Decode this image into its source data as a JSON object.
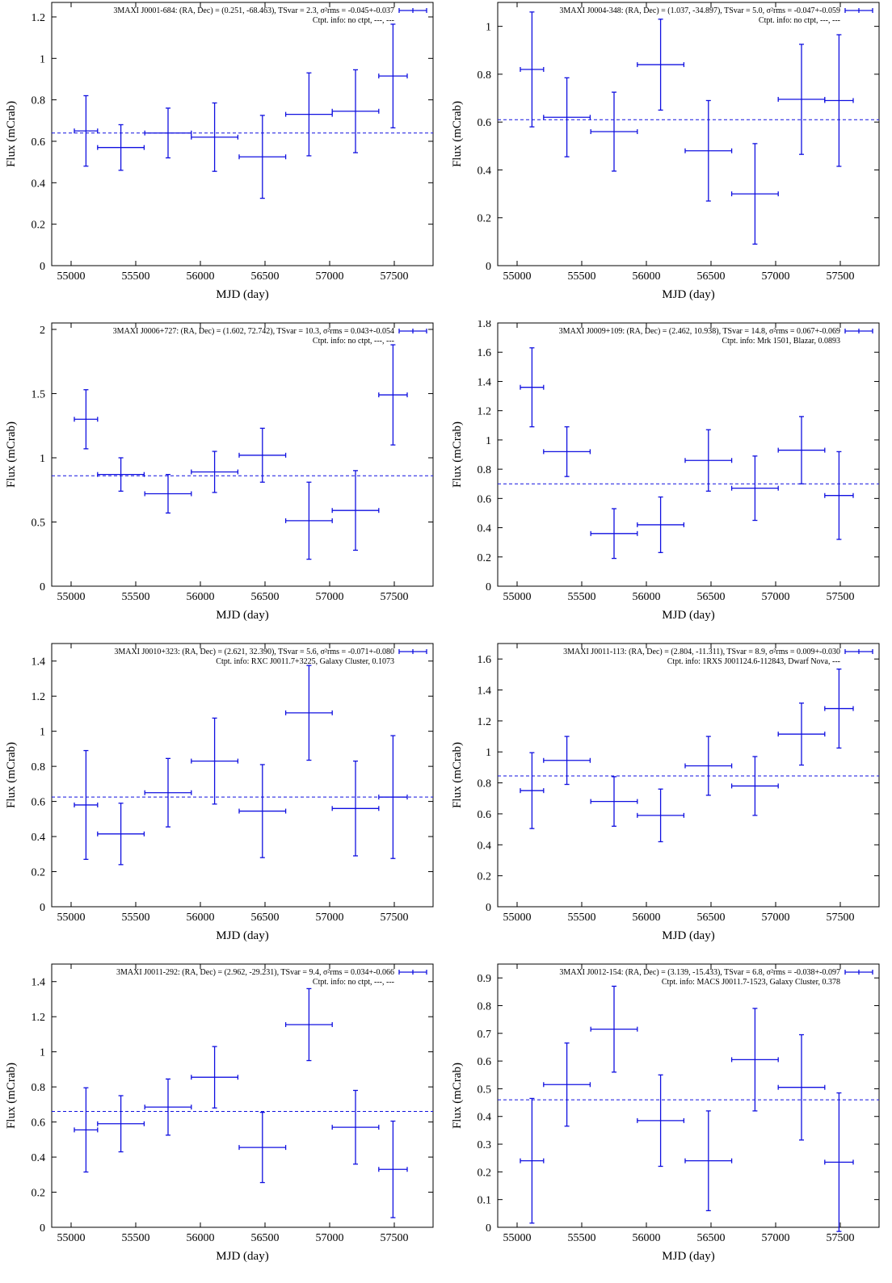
{
  "style": {
    "series_color": "#1010e0",
    "frame_color": "#000000"
  },
  "chart_data": [
    {
      "type": "scatter",
      "legend_title": "3MAXI J0001-684: (RA, Dec) = (0.251, -68.463), TSvar = 2.3, σ²rms = -0.045+-0.037",
      "legend_ctpt": "Ctpt. info: no ctpt, ---, ---",
      "legend_position": "top-right",
      "xlabel": "MJD (day)",
      "ylabel": "Flux (mCrab)",
      "xlim": [
        54850,
        57800
      ],
      "ylim": [
        0,
        1.27
      ],
      "xticks": [
        55000,
        55500,
        56000,
        56500,
        57000,
        57500
      ],
      "yticks": [
        0,
        0.2,
        0.4,
        0.6,
        0.8,
        1,
        1.2
      ],
      "mean": 0.64,
      "points": [
        {
          "x": 55115,
          "y": 0.65,
          "xerr": 90,
          "yerr": 0.17
        },
        {
          "x": 55385,
          "y": 0.57,
          "xerr": 180,
          "yerr": 0.11
        },
        {
          "x": 55750,
          "y": 0.64,
          "xerr": 180,
          "yerr": 0.12
        },
        {
          "x": 56110,
          "y": 0.62,
          "xerr": 180,
          "yerr": 0.165
        },
        {
          "x": 56480,
          "y": 0.525,
          "xerr": 180,
          "yerr": 0.2
        },
        {
          "x": 56840,
          "y": 0.73,
          "xerr": 180,
          "yerr": 0.2
        },
        {
          "x": 57200,
          "y": 0.745,
          "xerr": 180,
          "yerr": 0.2
        },
        {
          "x": 57490,
          "y": 0.915,
          "xerr": 110,
          "yerr": 0.25
        }
      ]
    },
    {
      "type": "scatter",
      "legend_title": "3MAXI J0004-348: (RA, Dec) = (1.037, -34.897), TSvar = 5.0, σ²rms = -0.047+-0.059",
      "legend_ctpt": "Ctpt. info: no ctpt, ---, ---",
      "legend_position": "top-right",
      "xlabel": "MJD (day)",
      "ylabel": "Flux (mCrab)",
      "xlim": [
        54850,
        57800
      ],
      "ylim": [
        0,
        1.1
      ],
      "xticks": [
        55000,
        55500,
        56000,
        56500,
        57000,
        57500
      ],
      "yticks": [
        0,
        0.2,
        0.4,
        0.6,
        0.8,
        1
      ],
      "mean": 0.61,
      "points": [
        {
          "x": 55115,
          "y": 0.82,
          "xerr": 90,
          "yerr": 0.24
        },
        {
          "x": 55385,
          "y": 0.62,
          "xerr": 180,
          "yerr": 0.165
        },
        {
          "x": 55750,
          "y": 0.56,
          "xerr": 180,
          "yerr": 0.165
        },
        {
          "x": 56110,
          "y": 0.84,
          "xerr": 180,
          "yerr": 0.19
        },
        {
          "x": 56480,
          "y": 0.48,
          "xerr": 180,
          "yerr": 0.21
        },
        {
          "x": 56840,
          "y": 0.3,
          "xerr": 180,
          "yerr": 0.21
        },
        {
          "x": 57200,
          "y": 0.695,
          "xerr": 180,
          "yerr": 0.23
        },
        {
          "x": 57490,
          "y": 0.69,
          "xerr": 110,
          "yerr": 0.275
        }
      ]
    },
    {
      "type": "scatter",
      "legend_title": "3MAXI J0006+727: (RA, Dec) = (1.602, 72.742), TSvar = 10.3, σ²rms = 0.043+-0.054",
      "legend_ctpt": "Ctpt. info: no ctpt, ---, ---",
      "legend_position": "top-right",
      "xlabel": "MJD (day)",
      "ylabel": "Flux (mCrab)",
      "xlim": [
        54850,
        57800
      ],
      "ylim": [
        0,
        2.05
      ],
      "xticks": [
        55000,
        55500,
        56000,
        56500,
        57000,
        57500
      ],
      "yticks": [
        0,
        0.5,
        1,
        1.5,
        2
      ],
      "mean": 0.86,
      "points": [
        {
          "x": 55115,
          "y": 1.3,
          "xerr": 90,
          "yerr": 0.23
        },
        {
          "x": 55385,
          "y": 0.87,
          "xerr": 180,
          "yerr": 0.13
        },
        {
          "x": 55750,
          "y": 0.72,
          "xerr": 180,
          "yerr": 0.15
        },
        {
          "x": 56110,
          "y": 0.89,
          "xerr": 180,
          "yerr": 0.16
        },
        {
          "x": 56480,
          "y": 1.02,
          "xerr": 180,
          "yerr": 0.21
        },
        {
          "x": 56840,
          "y": 0.51,
          "xerr": 180,
          "yerr": 0.3
        },
        {
          "x": 57200,
          "y": 0.59,
          "xerr": 180,
          "yerr": 0.31
        },
        {
          "x": 57490,
          "y": 1.49,
          "xerr": 110,
          "yerr": 0.39
        }
      ]
    },
    {
      "type": "scatter",
      "legend_title": "3MAXI J0009+109: (RA, Dec) = (2.462, 10.938), TSvar = 14.8, σ²rms = 0.067+-0.069",
      "legend_ctpt": "Ctpt. info: Mrk 1501, Blazar, 0.0893",
      "legend_position": "top-right",
      "xlabel": "MJD (day)",
      "ylabel": "Flux (mCrab)",
      "xlim": [
        54850,
        57800
      ],
      "ylim": [
        0,
        1.8
      ],
      "xticks": [
        55000,
        55500,
        56000,
        56500,
        57000,
        57500
      ],
      "yticks": [
        0,
        0.2,
        0.4,
        0.6,
        0.8,
        1,
        1.2,
        1.4,
        1.6,
        1.8
      ],
      "mean": 0.7,
      "points": [
        {
          "x": 55115,
          "y": 1.36,
          "xerr": 90,
          "yerr": 0.27
        },
        {
          "x": 55385,
          "y": 0.92,
          "xerr": 180,
          "yerr": 0.17
        },
        {
          "x": 55750,
          "y": 0.36,
          "xerr": 180,
          "yerr": 0.17
        },
        {
          "x": 56110,
          "y": 0.42,
          "xerr": 180,
          "yerr": 0.19
        },
        {
          "x": 56480,
          "y": 0.86,
          "xerr": 180,
          "yerr": 0.21
        },
        {
          "x": 56840,
          "y": 0.67,
          "xerr": 180,
          "yerr": 0.22
        },
        {
          "x": 57200,
          "y": 0.93,
          "xerr": 180,
          "yerr": 0.23
        },
        {
          "x": 57490,
          "y": 0.62,
          "xerr": 110,
          "yerr": 0.3
        }
      ]
    },
    {
      "type": "scatter",
      "legend_title": "3MAXI J0010+323: (RA, Dec) = (2.621, 32.390), TSvar = 5.6, σ²rms = -0.071+-0.080",
      "legend_ctpt": "Ctpt. info: RXC J0011.7+3225, Galaxy Cluster, 0.1073",
      "legend_position": "top-right",
      "xlabel": "MJD (day)",
      "ylabel": "Flux (mCrab)",
      "xlim": [
        54850,
        57800
      ],
      "ylim": [
        0,
        1.5
      ],
      "xticks": [
        55000,
        55500,
        56000,
        56500,
        57000,
        57500
      ],
      "yticks": [
        0,
        0.2,
        0.4,
        0.6,
        0.8,
        1,
        1.2,
        1.4
      ],
      "mean": 0.625,
      "points": [
        {
          "x": 55115,
          "y": 0.58,
          "xerr": 90,
          "yerr": 0.31
        },
        {
          "x": 55385,
          "y": 0.415,
          "xerr": 180,
          "yerr": 0.175
        },
        {
          "x": 55750,
          "y": 0.65,
          "xerr": 180,
          "yerr": 0.195
        },
        {
          "x": 56110,
          "y": 0.83,
          "xerr": 180,
          "yerr": 0.245
        },
        {
          "x": 56480,
          "y": 0.545,
          "xerr": 180,
          "yerr": 0.265
        },
        {
          "x": 56840,
          "y": 1.105,
          "xerr": 180,
          "yerr": 0.27
        },
        {
          "x": 57200,
          "y": 0.56,
          "xerr": 180,
          "yerr": 0.27
        },
        {
          "x": 57490,
          "y": 0.625,
          "xerr": 110,
          "yerr": 0.35
        }
      ]
    },
    {
      "type": "scatter",
      "legend_title": "3MAXI J0011-113: (RA, Dec) = (2.804, -11.311), TSvar = 8.9, σ²rms = 0.009+-0.030",
      "legend_ctpt": "Ctpt. info: 1RXS J001124.6-112843, Dwarf Nova, ---",
      "legend_position": "top-right",
      "xlabel": "MJD (day)",
      "ylabel": "Flux (mCrab)",
      "xlim": [
        54850,
        57800
      ],
      "ylim": [
        0,
        1.7
      ],
      "xticks": [
        55000,
        55500,
        56000,
        56500,
        57000,
        57500
      ],
      "yticks": [
        0,
        0.2,
        0.4,
        0.6,
        0.8,
        1,
        1.2,
        1.4,
        1.6
      ],
      "mean": 0.845,
      "points": [
        {
          "x": 55115,
          "y": 0.75,
          "xerr": 90,
          "yerr": 0.245
        },
        {
          "x": 55385,
          "y": 0.945,
          "xerr": 180,
          "yerr": 0.155
        },
        {
          "x": 55750,
          "y": 0.68,
          "xerr": 180,
          "yerr": 0.16
        },
        {
          "x": 56110,
          "y": 0.59,
          "xerr": 180,
          "yerr": 0.17
        },
        {
          "x": 56480,
          "y": 0.91,
          "xerr": 180,
          "yerr": 0.19
        },
        {
          "x": 56840,
          "y": 0.78,
          "xerr": 180,
          "yerr": 0.19
        },
        {
          "x": 57200,
          "y": 1.115,
          "xerr": 180,
          "yerr": 0.2
        },
        {
          "x": 57490,
          "y": 1.28,
          "xerr": 110,
          "yerr": 0.255
        }
      ]
    },
    {
      "type": "scatter",
      "legend_title": "3MAXI J0011-292: (RA, Dec) = (2.962, -29.231), TSvar = 9.4, σ²rms = 0.034+-0.066",
      "legend_ctpt": "Ctpt. info: no ctpt, ---, ---",
      "legend_position": "top-right",
      "xlabel": "MJD (day)",
      "ylabel": "Flux (mCrab)",
      "xlim": [
        54850,
        57800
      ],
      "ylim": [
        0,
        1.5
      ],
      "xticks": [
        55000,
        55500,
        56000,
        56500,
        57000,
        57500
      ],
      "yticks": [
        0,
        0.2,
        0.4,
        0.6,
        0.8,
        1,
        1.2,
        1.4
      ],
      "mean": 0.66,
      "points": [
        {
          "x": 55115,
          "y": 0.555,
          "xerr": 90,
          "yerr": 0.24
        },
        {
          "x": 55385,
          "y": 0.59,
          "xerr": 180,
          "yerr": 0.16
        },
        {
          "x": 55750,
          "y": 0.685,
          "xerr": 180,
          "yerr": 0.16
        },
        {
          "x": 56110,
          "y": 0.855,
          "xerr": 180,
          "yerr": 0.175
        },
        {
          "x": 56480,
          "y": 0.455,
          "xerr": 180,
          "yerr": 0.2
        },
        {
          "x": 56840,
          "y": 1.155,
          "xerr": 180,
          "yerr": 0.205
        },
        {
          "x": 57200,
          "y": 0.57,
          "xerr": 180,
          "yerr": 0.21
        },
        {
          "x": 57490,
          "y": 0.33,
          "xerr": 110,
          "yerr": 0.275
        }
      ]
    },
    {
      "type": "scatter",
      "legend_title": "3MAXI J0012-154: (RA, Dec) = (3.139, -15.433), TSvar = 6.8, σ²rms = -0.038+-0.097",
      "legend_ctpt": "Ctpt. info: MACS J0011.7-1523, Galaxy Cluster, 0.378",
      "legend_position": "top-right",
      "xlabel": "MJD (day)",
      "ylabel": "Flux (mCrab)",
      "xlim": [
        54850,
        57800
      ],
      "ylim": [
        0,
        0.95
      ],
      "xticks": [
        55000,
        55500,
        56000,
        56500,
        57000,
        57500
      ],
      "yticks": [
        0,
        0.1,
        0.2,
        0.3,
        0.4,
        0.5,
        0.6,
        0.7,
        0.8,
        0.9
      ],
      "mean": 0.46,
      "points": [
        {
          "x": 55115,
          "y": 0.24,
          "xerr": 90,
          "yerr": 0.225
        },
        {
          "x": 55385,
          "y": 0.515,
          "xerr": 180,
          "yerr": 0.15
        },
        {
          "x": 55750,
          "y": 0.715,
          "xerr": 180,
          "yerr": 0.155
        },
        {
          "x": 56110,
          "y": 0.385,
          "xerr": 180,
          "yerr": 0.165
        },
        {
          "x": 56480,
          "y": 0.24,
          "xerr": 180,
          "yerr": 0.18
        },
        {
          "x": 56840,
          "y": 0.605,
          "xerr": 180,
          "yerr": 0.185
        },
        {
          "x": 57200,
          "y": 0.505,
          "xerr": 180,
          "yerr": 0.19
        },
        {
          "x": 57490,
          "y": 0.235,
          "xerr": 110,
          "yerr": 0.25
        }
      ]
    }
  ]
}
